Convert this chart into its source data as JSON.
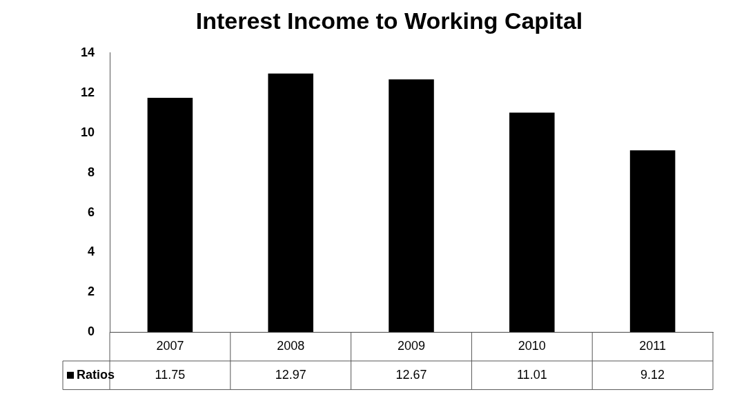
{
  "chart_data": {
    "type": "bar",
    "title": "Interest Income to Working Capital",
    "categories": [
      "2007",
      "2008",
      "2009",
      "2010",
      "2011"
    ],
    "series": [
      {
        "name": "Ratios",
        "color": "#000000",
        "values": [
          11.75,
          12.97,
          12.67,
          11.01,
          9.12
        ]
      }
    ],
    "ylim": [
      0,
      14
    ],
    "yticks": [
      0,
      2,
      4,
      6,
      8,
      10,
      12,
      14
    ],
    "grid": false,
    "data_labels": true,
    "legend": "bottom left"
  }
}
